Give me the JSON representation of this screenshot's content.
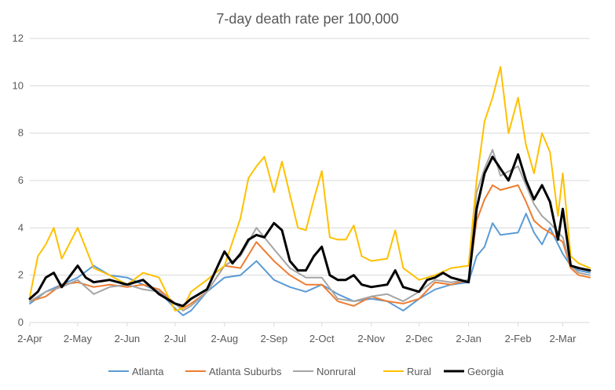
{
  "chart_data": {
    "type": "line",
    "title": "7-day death rate per 100,000",
    "xlabel": "",
    "ylabel": "",
    "ylim": [
      0,
      12
    ],
    "yticks": [
      0,
      2,
      4,
      6,
      8,
      10,
      12
    ],
    "xlim": [
      "2020-04-02",
      "2021-03-19"
    ],
    "x_tick_dates": [
      "2020-04-02",
      "2020-05-02",
      "2020-06-02",
      "2020-07-02",
      "2020-08-02",
      "2020-09-02",
      "2020-10-02",
      "2020-11-02",
      "2020-12-02",
      "2021-01-02",
      "2021-02-02",
      "2021-03-02"
    ],
    "x_tick_labels": [
      "2-Apr",
      "2-May",
      "2-Jun",
      "2-Jul",
      "2-Aug",
      "2-Sep",
      "2-Oct",
      "2-Nov",
      "2-Dec",
      "2-Jan",
      "2-Feb",
      "2-Mar"
    ],
    "grid": true,
    "legend_position": "bottom",
    "series": [
      {
        "name": "Atlanta",
        "color": "#5b9bd5",
        "points": [
          [
            "2020-04-02",
            0.8
          ],
          [
            "2020-04-12",
            1.3
          ],
          [
            "2020-04-22",
            1.6
          ],
          [
            "2020-05-02",
            1.9
          ],
          [
            "2020-05-12",
            2.4
          ],
          [
            "2020-05-22",
            2.0
          ],
          [
            "2020-06-02",
            1.9
          ],
          [
            "2020-06-12",
            1.6
          ],
          [
            "2020-06-22",
            1.3
          ],
          [
            "2020-07-02",
            0.6
          ],
          [
            "2020-07-07",
            0.3
          ],
          [
            "2020-07-12",
            0.5
          ],
          [
            "2020-07-22",
            1.3
          ],
          [
            "2020-08-02",
            1.9
          ],
          [
            "2020-08-12",
            2.0
          ],
          [
            "2020-08-22",
            2.6
          ],
          [
            "2020-09-02",
            1.8
          ],
          [
            "2020-09-12",
            1.5
          ],
          [
            "2020-09-22",
            1.3
          ],
          [
            "2020-10-02",
            1.6
          ],
          [
            "2020-10-12",
            1.2
          ],
          [
            "2020-10-22",
            0.9
          ],
          [
            "2020-11-02",
            1.0
          ],
          [
            "2020-11-12",
            0.9
          ],
          [
            "2020-11-22",
            0.5
          ],
          [
            "2020-12-02",
            1.0
          ],
          [
            "2020-12-12",
            1.4
          ],
          [
            "2020-12-22",
            1.6
          ],
          [
            "2021-01-02",
            1.7
          ],
          [
            "2021-01-07",
            2.8
          ],
          [
            "2021-01-12",
            3.2
          ],
          [
            "2021-01-17",
            4.2
          ],
          [
            "2021-01-22",
            3.7
          ],
          [
            "2021-02-02",
            3.8
          ],
          [
            "2021-02-07",
            4.6
          ],
          [
            "2021-02-12",
            3.8
          ],
          [
            "2021-02-17",
            3.3
          ],
          [
            "2021-02-22",
            4.0
          ],
          [
            "2021-03-02",
            2.9
          ],
          [
            "2021-03-07",
            2.4
          ],
          [
            "2021-03-12",
            2.2
          ],
          [
            "2021-03-19",
            2.1
          ]
        ]
      },
      {
        "name": "Atlanta Suburbs",
        "color": "#ed7d31",
        "points": [
          [
            "2020-04-02",
            0.9
          ],
          [
            "2020-04-12",
            1.1
          ],
          [
            "2020-04-22",
            1.6
          ],
          [
            "2020-05-02",
            1.7
          ],
          [
            "2020-05-12",
            1.5
          ],
          [
            "2020-05-22",
            1.6
          ],
          [
            "2020-06-02",
            1.5
          ],
          [
            "2020-06-12",
            1.6
          ],
          [
            "2020-06-22",
            1.4
          ],
          [
            "2020-07-02",
            0.8
          ],
          [
            "2020-07-07",
            0.6
          ],
          [
            "2020-07-12",
            0.8
          ],
          [
            "2020-07-22",
            1.3
          ],
          [
            "2020-08-02",
            2.4
          ],
          [
            "2020-08-12",
            2.3
          ],
          [
            "2020-08-22",
            3.4
          ],
          [
            "2020-09-02",
            2.6
          ],
          [
            "2020-09-12",
            2.0
          ],
          [
            "2020-09-22",
            1.6
          ],
          [
            "2020-10-02",
            1.6
          ],
          [
            "2020-10-12",
            0.9
          ],
          [
            "2020-10-22",
            0.7
          ],
          [
            "2020-11-02",
            1.1
          ],
          [
            "2020-11-12",
            0.9
          ],
          [
            "2020-11-22",
            0.8
          ],
          [
            "2020-12-02",
            1.0
          ],
          [
            "2020-12-12",
            1.7
          ],
          [
            "2020-12-22",
            1.6
          ],
          [
            "2021-01-02",
            1.8
          ],
          [
            "2021-01-07",
            4.3
          ],
          [
            "2021-01-12",
            5.2
          ],
          [
            "2021-01-17",
            5.8
          ],
          [
            "2021-01-22",
            5.6
          ],
          [
            "2021-02-02",
            5.8
          ],
          [
            "2021-02-07",
            5.1
          ],
          [
            "2021-02-12",
            4.3
          ],
          [
            "2021-02-17",
            4.0
          ],
          [
            "2021-02-22",
            3.8
          ],
          [
            "2021-03-02",
            3.4
          ],
          [
            "2021-03-07",
            2.3
          ],
          [
            "2021-03-12",
            2.0
          ],
          [
            "2021-03-19",
            1.9
          ]
        ]
      },
      {
        "name": "Nonrural",
        "color": "#a5a5a5",
        "points": [
          [
            "2020-04-02",
            0.9
          ],
          [
            "2020-04-12",
            1.3
          ],
          [
            "2020-04-22",
            1.5
          ],
          [
            "2020-05-02",
            1.8
          ],
          [
            "2020-05-12",
            1.2
          ],
          [
            "2020-05-22",
            1.5
          ],
          [
            "2020-06-02",
            1.6
          ],
          [
            "2020-06-12",
            1.4
          ],
          [
            "2020-06-22",
            1.3
          ],
          [
            "2020-07-02",
            0.8
          ],
          [
            "2020-07-07",
            0.5
          ],
          [
            "2020-07-12",
            0.7
          ],
          [
            "2020-07-22",
            1.3
          ],
          [
            "2020-08-02",
            2.4
          ],
          [
            "2020-08-12",
            2.8
          ],
          [
            "2020-08-22",
            4.0
          ],
          [
            "2020-09-02",
            3.1
          ],
          [
            "2020-09-12",
            2.3
          ],
          [
            "2020-09-22",
            1.9
          ],
          [
            "2020-10-02",
            1.9
          ],
          [
            "2020-10-12",
            1.0
          ],
          [
            "2020-10-22",
            0.9
          ],
          [
            "2020-11-02",
            1.1
          ],
          [
            "2020-11-12",
            1.2
          ],
          [
            "2020-11-22",
            0.9
          ],
          [
            "2020-12-02",
            1.3
          ],
          [
            "2020-12-12",
            1.8
          ],
          [
            "2020-12-22",
            1.7
          ],
          [
            "2021-01-02",
            1.8
          ],
          [
            "2021-01-07",
            5.5
          ],
          [
            "2021-01-12",
            6.5
          ],
          [
            "2021-01-17",
            7.3
          ],
          [
            "2021-01-22",
            6.2
          ],
          [
            "2021-02-02",
            6.6
          ],
          [
            "2021-02-07",
            5.8
          ],
          [
            "2021-02-12",
            5.0
          ],
          [
            "2021-02-17",
            4.5
          ],
          [
            "2021-02-22",
            4.2
          ],
          [
            "2021-03-02",
            3.6
          ],
          [
            "2021-03-07",
            2.4
          ],
          [
            "2021-03-12",
            2.1
          ],
          [
            "2021-03-19",
            2.0
          ]
        ]
      },
      {
        "name": "Rural",
        "color": "#ffc000",
        "points": [
          [
            "2020-04-02",
            1.1
          ],
          [
            "2020-04-07",
            2.8
          ],
          [
            "2020-04-12",
            3.3
          ],
          [
            "2020-04-17",
            4.0
          ],
          [
            "2020-04-22",
            2.7
          ],
          [
            "2020-05-02",
            4.0
          ],
          [
            "2020-05-12",
            2.3
          ],
          [
            "2020-05-22",
            2.0
          ],
          [
            "2020-06-02",
            1.6
          ],
          [
            "2020-06-12",
            2.1
          ],
          [
            "2020-06-22",
            1.9
          ],
          [
            "2020-07-02",
            0.5
          ],
          [
            "2020-07-07",
            0.6
          ],
          [
            "2020-07-12",
            1.3
          ],
          [
            "2020-07-22",
            1.8
          ],
          [
            "2020-08-02",
            2.4
          ],
          [
            "2020-08-12",
            4.4
          ],
          [
            "2020-08-17",
            6.1
          ],
          [
            "2020-08-22",
            6.6
          ],
          [
            "2020-08-27",
            7.0
          ],
          [
            "2020-09-02",
            5.5
          ],
          [
            "2020-09-07",
            6.8
          ],
          [
            "2020-09-12",
            5.4
          ],
          [
            "2020-09-17",
            4.0
          ],
          [
            "2020-09-22",
            3.9
          ],
          [
            "2020-09-27",
            5.2
          ],
          [
            "2020-10-02",
            6.4
          ],
          [
            "2020-10-07",
            3.6
          ],
          [
            "2020-10-12",
            3.5
          ],
          [
            "2020-10-17",
            3.5
          ],
          [
            "2020-10-22",
            4.1
          ],
          [
            "2020-10-27",
            2.8
          ],
          [
            "2020-11-02",
            2.6
          ],
          [
            "2020-11-12",
            2.7
          ],
          [
            "2020-11-17",
            3.9
          ],
          [
            "2020-11-22",
            2.3
          ],
          [
            "2020-12-02",
            1.8
          ],
          [
            "2020-12-12",
            2.0
          ],
          [
            "2020-12-22",
            2.3
          ],
          [
            "2021-01-02",
            2.4
          ],
          [
            "2021-01-07",
            6.0
          ],
          [
            "2021-01-12",
            8.5
          ],
          [
            "2021-01-17",
            9.5
          ],
          [
            "2021-01-22",
            10.8
          ],
          [
            "2021-01-27",
            8.0
          ],
          [
            "2021-02-02",
            9.5
          ],
          [
            "2021-02-07",
            7.5
          ],
          [
            "2021-02-12",
            6.3
          ],
          [
            "2021-02-17",
            8.0
          ],
          [
            "2021-02-22",
            7.2
          ],
          [
            "2021-02-27",
            4.5
          ],
          [
            "2021-03-02",
            6.3
          ],
          [
            "2021-03-07",
            2.8
          ],
          [
            "2021-03-12",
            2.5
          ],
          [
            "2021-03-19",
            2.3
          ]
        ]
      },
      {
        "name": "Georgia",
        "color": "#000000",
        "points": [
          [
            "2020-04-02",
            1.0
          ],
          [
            "2020-04-07",
            1.3
          ],
          [
            "2020-04-12",
            1.9
          ],
          [
            "2020-04-17",
            2.1
          ],
          [
            "2020-04-22",
            1.5
          ],
          [
            "2020-05-02",
            2.4
          ],
          [
            "2020-05-07",
            1.9
          ],
          [
            "2020-05-12",
            1.7
          ],
          [
            "2020-05-22",
            1.8
          ],
          [
            "2020-06-02",
            1.6
          ],
          [
            "2020-06-12",
            1.8
          ],
          [
            "2020-06-22",
            1.2
          ],
          [
            "2020-07-02",
            0.8
          ],
          [
            "2020-07-07",
            0.7
          ],
          [
            "2020-07-12",
            1.0
          ],
          [
            "2020-07-22",
            1.4
          ],
          [
            "2020-08-02",
            3.0
          ],
          [
            "2020-08-07",
            2.5
          ],
          [
            "2020-08-12",
            2.9
          ],
          [
            "2020-08-17",
            3.5
          ],
          [
            "2020-08-22",
            3.7
          ],
          [
            "2020-08-27",
            3.6
          ],
          [
            "2020-09-02",
            4.2
          ],
          [
            "2020-09-07",
            3.9
          ],
          [
            "2020-09-12",
            2.6
          ],
          [
            "2020-09-17",
            2.2
          ],
          [
            "2020-09-22",
            2.2
          ],
          [
            "2020-09-27",
            2.8
          ],
          [
            "2020-10-02",
            3.2
          ],
          [
            "2020-10-07",
            2.0
          ],
          [
            "2020-10-12",
            1.8
          ],
          [
            "2020-10-17",
            1.8
          ],
          [
            "2020-10-22",
            2.0
          ],
          [
            "2020-10-27",
            1.6
          ],
          [
            "2020-11-02",
            1.5
          ],
          [
            "2020-11-12",
            1.6
          ],
          [
            "2020-11-17",
            2.2
          ],
          [
            "2020-11-22",
            1.5
          ],
          [
            "2020-12-02",
            1.3
          ],
          [
            "2020-12-07",
            1.8
          ],
          [
            "2020-12-12",
            1.9
          ],
          [
            "2020-12-17",
            2.1
          ],
          [
            "2020-12-22",
            1.9
          ],
          [
            "2021-01-02",
            1.7
          ],
          [
            "2021-01-07",
            4.8
          ],
          [
            "2021-01-12",
            6.3
          ],
          [
            "2021-01-17",
            7.0
          ],
          [
            "2021-01-22",
            6.5
          ],
          [
            "2021-01-27",
            6.0
          ],
          [
            "2021-02-02",
            7.1
          ],
          [
            "2021-02-07",
            6.0
          ],
          [
            "2021-02-12",
            5.2
          ],
          [
            "2021-02-17",
            5.8
          ],
          [
            "2021-02-22",
            5.1
          ],
          [
            "2021-02-27",
            3.5
          ],
          [
            "2021-03-02",
            4.8
          ],
          [
            "2021-03-07",
            2.4
          ],
          [
            "2021-03-12",
            2.3
          ],
          [
            "2021-03-19",
            2.2
          ]
        ]
      }
    ]
  }
}
